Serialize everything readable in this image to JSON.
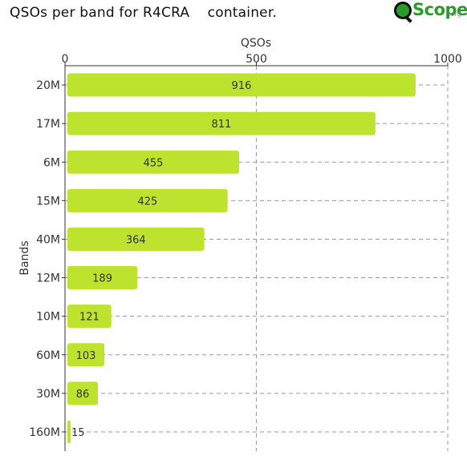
{
  "header": {
    "title": "QSOs per band for R4CRA    container.",
    "logo_text": "Scope",
    "logo_suffix": ".org"
  },
  "chart_data": {
    "type": "bar",
    "orientation": "horizontal",
    "xlabel": "QSOs",
    "ylabel": "Bands",
    "xlim": [
      0,
      1000
    ],
    "xticks": [
      0,
      500,
      1000
    ],
    "x_axis_position": "top",
    "grid": true,
    "categories": [
      "20M",
      "17M",
      "6M",
      "15M",
      "40M",
      "12M",
      "10M",
      "60M",
      "30M",
      "160M"
    ],
    "values": [
      916,
      811,
      455,
      425,
      364,
      189,
      121,
      103,
      86,
      15
    ],
    "bar_color": "#bde32f"
  }
}
